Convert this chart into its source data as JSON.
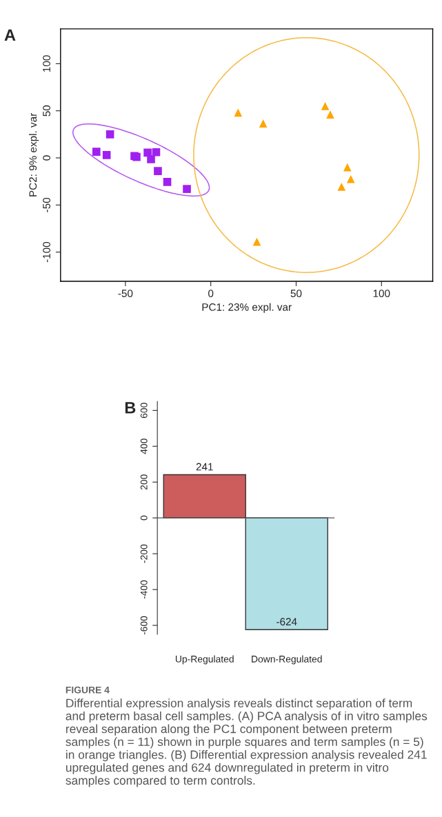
{
  "chart_data": [
    {
      "type": "scatter",
      "title": "A",
      "xlabel": "PC1: 23% expl. var",
      "ylabel": "PC2: 9% expl. var",
      "xlim": [
        -88,
        130
      ],
      "ylim": [
        -131,
        137
      ],
      "xticks": [
        -50,
        0,
        50,
        100
      ],
      "yticks": [
        -100,
        -50,
        0,
        50,
        100
      ],
      "grid": false,
      "legend": false,
      "series": [
        {
          "type": "scatter",
          "marker": "square",
          "color": "#a020f0",
          "x": [
            -67,
            -61,
            -59,
            -44.7,
            -43.5,
            -37,
            -35,
            -32,
            -31,
            -25.5,
            -14
          ],
          "values": [
            6.5,
            3,
            25,
            2,
            1,
            5.6,
            -1.4,
            6,
            -14,
            -25.5,
            -33
          ]
        },
        {
          "type": "scatter",
          "marker": "triangle",
          "color": "#ffa500",
          "x": [
            16,
            30.7,
            67,
            70,
            80,
            82,
            76.6,
            27
          ],
          "values": [
            48,
            36.5,
            55,
            46,
            -10,
            -22.5,
            -30.6,
            -89
          ]
        }
      ]
    },
    {
      "type": "bar",
      "title": "B",
      "categories": [
        "Up-Regulated",
        "Down-Regulated"
      ],
      "values": [
        241,
        -624
      ],
      "colors": [
        "#cd5c5c",
        "#b0dfe5"
      ],
      "data_labels": true,
      "ylim": [
        -650,
        650
      ],
      "yticks": [
        -600,
        -400,
        -200,
        0,
        200,
        400,
        600
      ],
      "grid": false,
      "legend": false,
      "ref_lines": [
        {
          "axis": "y",
          "value": 0,
          "color": "#555555"
        }
      ],
      "annotations": [
        "FIGURE 4",
        "Differential expression analysis reveals distinct separation of term and preterm basal cell samples. (A) PCA analysis of in vitro samples reveal separation along the PC1 component between preterm samples (n = 11) shown in purple squares and term samples (n = 5) in orange triangles. (B) Differential expression analysis revealed 241 upregulated genes and 624 downregulated in preterm in vitro samples compared to term controls."
      ]
    }
  ]
}
